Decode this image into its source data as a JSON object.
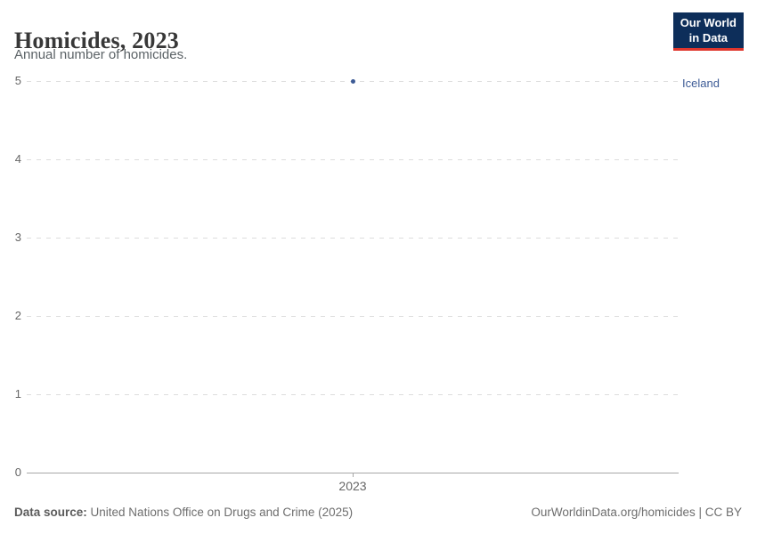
{
  "header": {
    "title": "Homicides, 2023",
    "subtitle": "Annual number of homicides."
  },
  "logo": {
    "line1": "Our World",
    "line2": "in Data",
    "bg_color": "#0d2e5a",
    "accent_color": "#e0362d"
  },
  "chart_data": {
    "type": "scatter",
    "title": "Homicides, 2023",
    "subtitle": "Annual number of homicides.",
    "xlabel": "",
    "ylabel": "",
    "x": [
      2023
    ],
    "series": [
      {
        "name": "Iceland",
        "values": [
          5
        ],
        "color": "#3d5b96"
      }
    ],
    "ylim": [
      0,
      5
    ],
    "yticks": [
      0,
      1,
      2,
      3,
      4,
      5
    ],
    "xtick_labels": [
      "2023"
    ],
    "grid": true,
    "legend_position": "right-entity-label"
  },
  "footer": {
    "datasource_label": "Data source:",
    "datasource_text": " United Nations Office on Drugs and Crime (2025)",
    "credit": "OurWorldinData.org/homicides | CC BY"
  }
}
